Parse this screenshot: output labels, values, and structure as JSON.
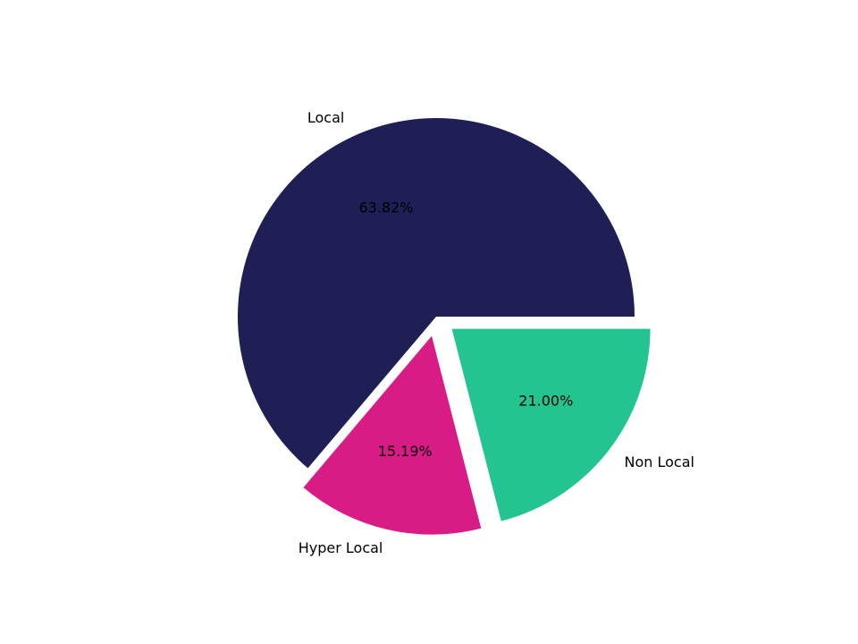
{
  "chart_data": {
    "type": "pie",
    "categories": [
      "Local",
      "Hyper Local",
      "Non Local"
    ],
    "values": [
      63.82,
      15.19,
      21.0
    ],
    "value_labels": [
      "63.82%",
      "15.19%",
      "21.00%"
    ],
    "colors": [
      "#1f1f55",
      "#d81b85",
      "#23c491"
    ],
    "explode": [
      0,
      0.1,
      0.1
    ]
  }
}
